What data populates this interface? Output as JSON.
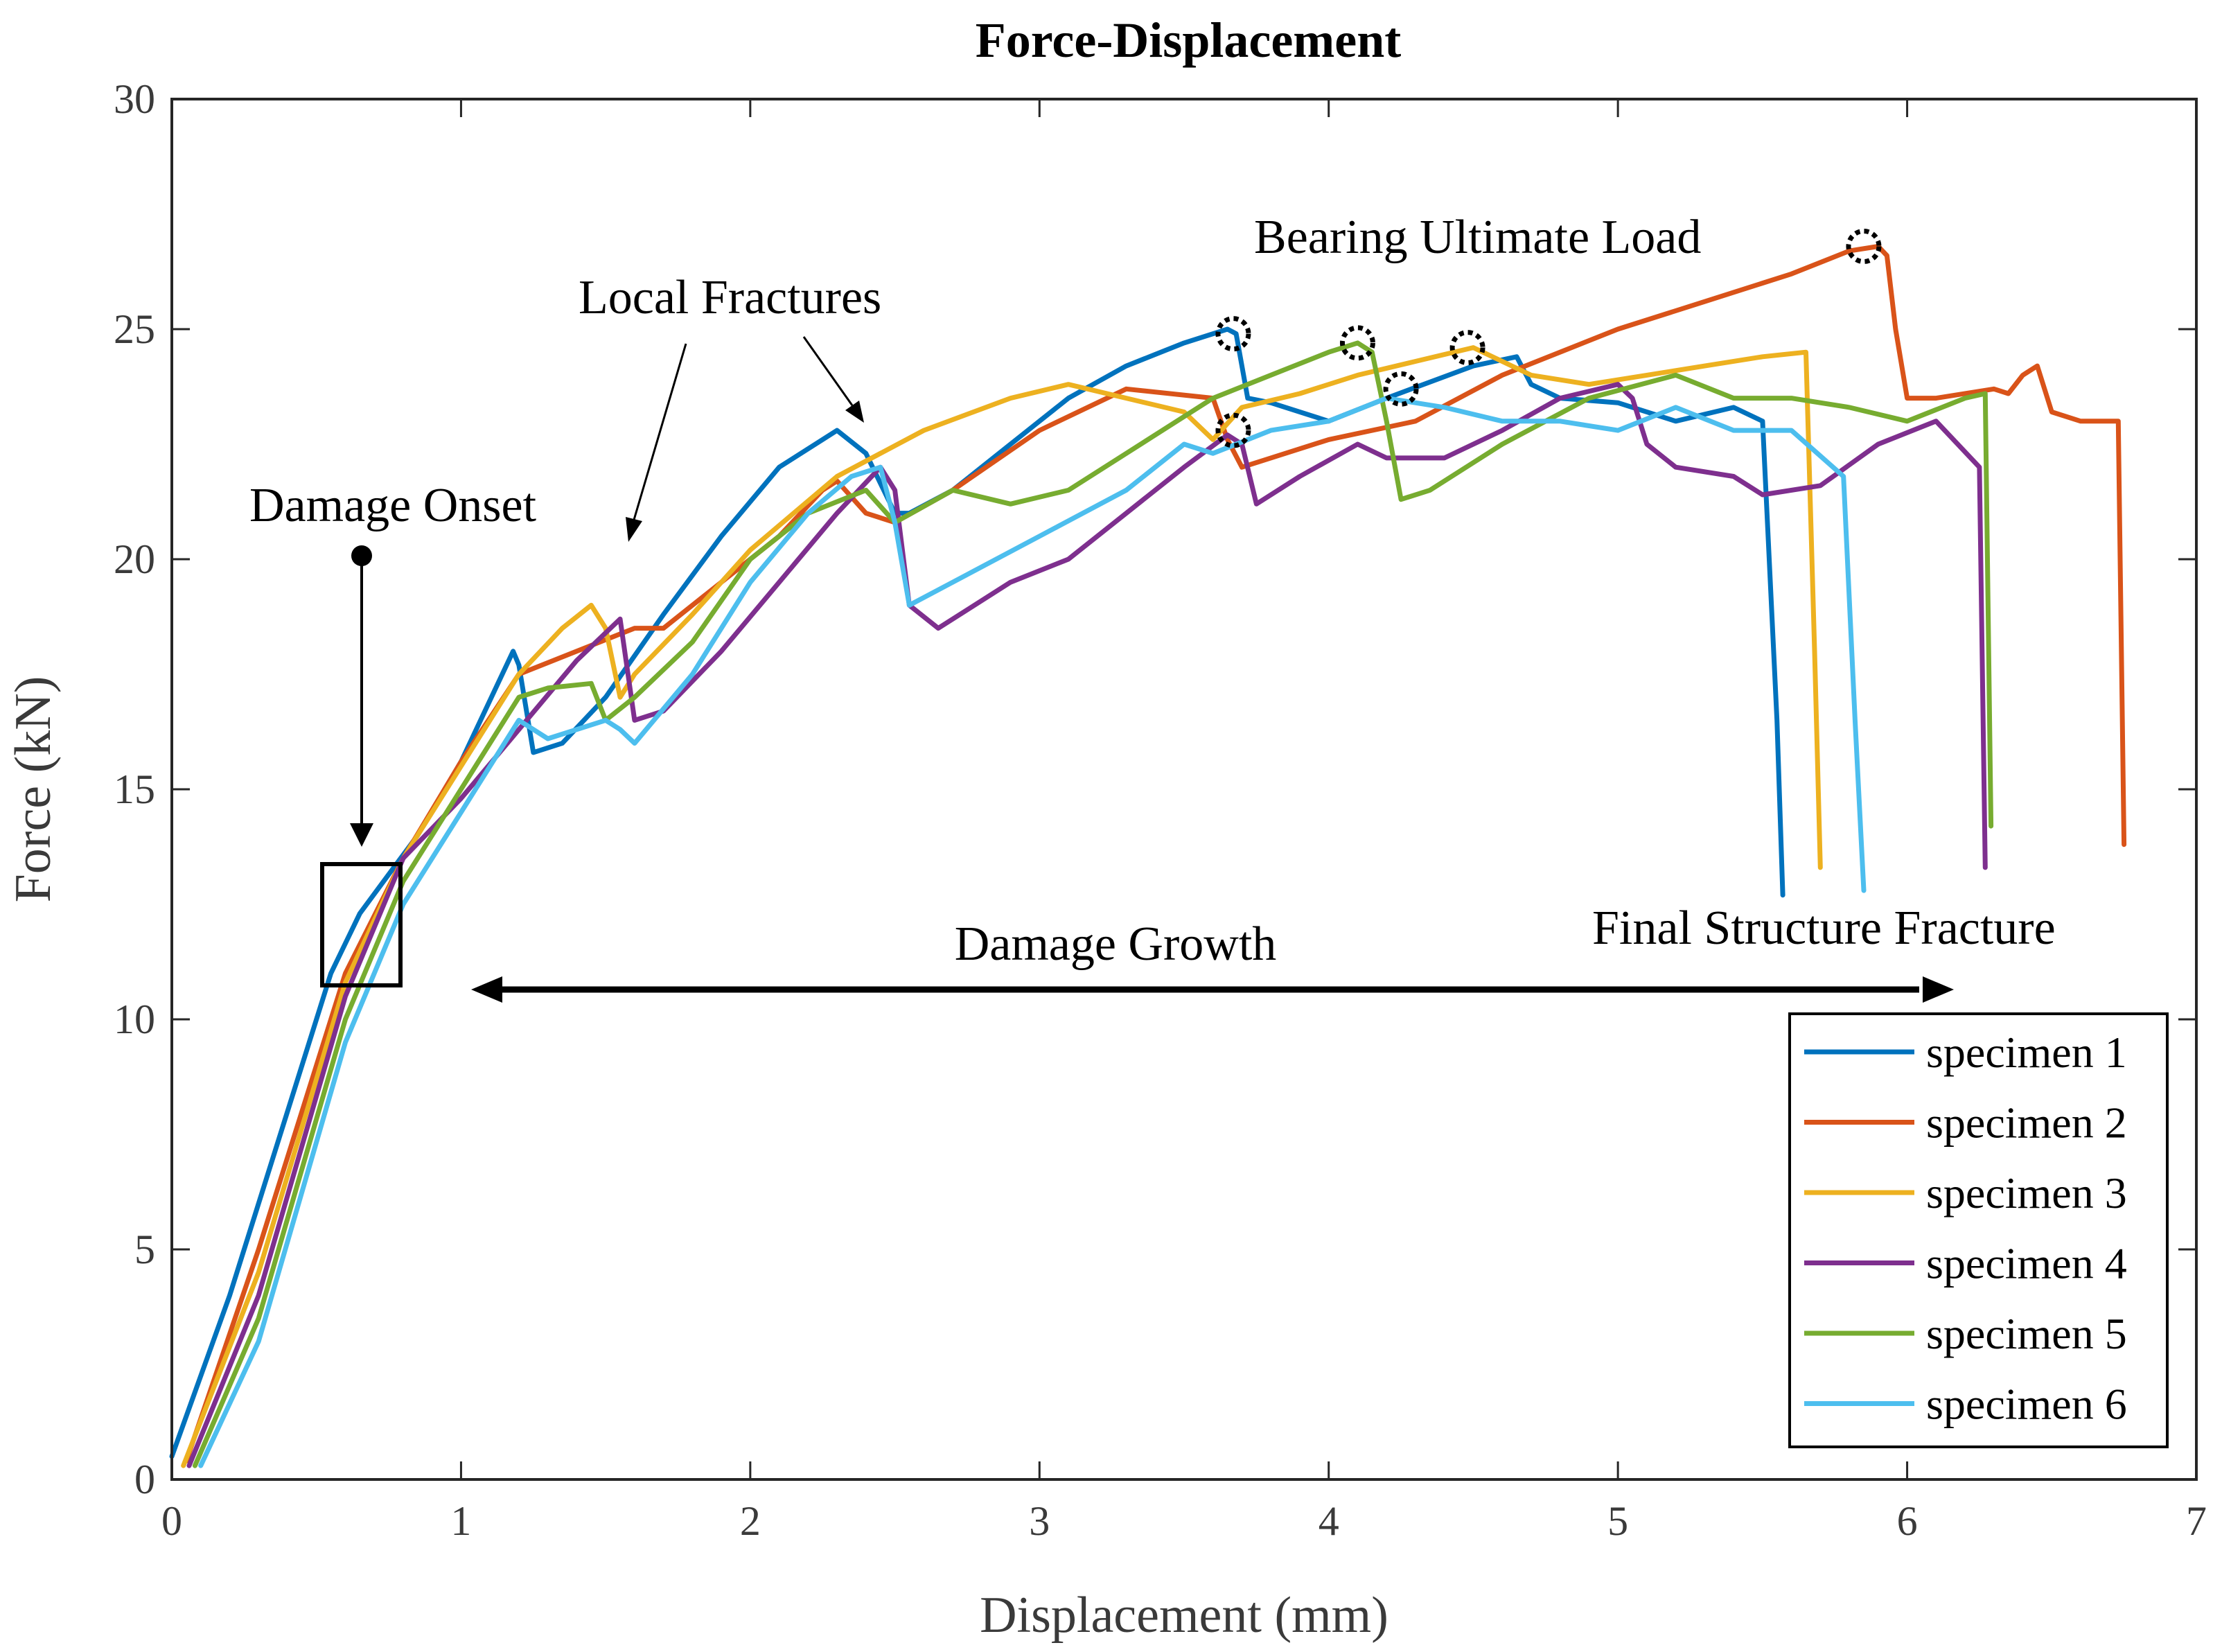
{
  "chart_data": {
    "type": "line",
    "title": "Force-Displacement",
    "xlabel": "Displacement (mm)",
    "ylabel": "Force (kN)",
    "xlim": [
      0,
      7
    ],
    "ylim": [
      0,
      30
    ],
    "xticks": [
      0,
      1,
      2,
      3,
      4,
      5,
      6,
      7
    ],
    "yticks": [
      0,
      5,
      10,
      15,
      20,
      25,
      30
    ],
    "grid": false,
    "legend": "bottom-right",
    "series": [
      {
        "name": "specimen 1",
        "color": "#0072BD",
        "x": [
          0.0,
          0.2,
          0.4,
          0.55,
          0.65,
          0.85,
          1.0,
          1.18,
          1.2,
          1.25,
          1.35,
          1.5,
          1.7,
          1.9,
          2.1,
          2.3,
          2.4,
          2.5,
          2.55,
          2.7,
          2.9,
          3.1,
          3.3,
          3.5,
          3.65,
          3.68,
          3.72,
          3.8,
          4.0,
          4.2,
          4.5,
          4.65,
          4.7,
          4.8,
          5.0,
          5.2,
          5.4,
          5.5,
          5.55,
          5.57
        ],
        "y": [
          0.5,
          4.0,
          8.0,
          11.0,
          12.3,
          14.0,
          15.6,
          18.0,
          17.7,
          15.8,
          16.0,
          17.0,
          18.8,
          20.5,
          22.0,
          22.8,
          22.3,
          21.0,
          21.0,
          21.5,
          22.5,
          23.5,
          24.2,
          24.7,
          25.0,
          24.9,
          23.5,
          23.4,
          23.0,
          23.5,
          24.2,
          24.4,
          23.8,
          23.5,
          23.4,
          23.0,
          23.3,
          23.0,
          16.5,
          12.7
        ]
      },
      {
        "name": "specimen 2",
        "color": "#D95319",
        "x": [
          0.05,
          0.3,
          0.6,
          0.8,
          1.0,
          1.2,
          1.4,
          1.6,
          1.7,
          1.9,
          2.1,
          2.25,
          2.3,
          2.4,
          2.5,
          2.7,
          3.0,
          3.3,
          3.6,
          3.65,
          3.7,
          3.8,
          4.0,
          4.3,
          4.6,
          5.0,
          5.3,
          5.6,
          5.8,
          5.9,
          5.93,
          5.96,
          6.0,
          6.1,
          6.3,
          6.35,
          6.4,
          6.45,
          6.5,
          6.6,
          6.73,
          6.75
        ],
        "y": [
          0.4,
          5.0,
          11.0,
          13.5,
          15.6,
          17.5,
          18.0,
          18.5,
          18.5,
          19.5,
          20.5,
          21.5,
          21.7,
          21.0,
          20.8,
          21.5,
          22.8,
          23.7,
          23.5,
          22.6,
          22.0,
          22.2,
          22.6,
          23.0,
          24.0,
          25.0,
          25.6,
          26.2,
          26.7,
          26.8,
          26.6,
          25.0,
          23.5,
          23.5,
          23.7,
          23.6,
          24.0,
          24.2,
          23.2,
          23.0,
          23.0,
          13.8
        ]
      },
      {
        "name": "specimen 3",
        "color": "#EDB120",
        "x": [
          0.04,
          0.3,
          0.6,
          0.8,
          1.0,
          1.2,
          1.35,
          1.45,
          1.5,
          1.55,
          1.6,
          1.8,
          2.0,
          2.3,
          2.6,
          2.9,
          3.1,
          3.3,
          3.5,
          3.6,
          3.7,
          3.9,
          4.1,
          4.3,
          4.5,
          4.7,
          4.9,
          5.1,
          5.3,
          5.5,
          5.65,
          5.68,
          5.7
        ],
        "y": [
          0.3,
          4.5,
          10.8,
          13.5,
          15.5,
          17.5,
          18.5,
          19.0,
          18.5,
          17.0,
          17.5,
          18.8,
          20.2,
          21.8,
          22.8,
          23.5,
          23.8,
          23.5,
          23.2,
          22.6,
          23.3,
          23.6,
          24.0,
          24.3,
          24.6,
          24.0,
          23.8,
          24.0,
          24.2,
          24.4,
          24.5,
          18.0,
          13.3
        ]
      },
      {
        "name": "specimen 4",
        "color": "#7E2F8E",
        "x": [
          0.06,
          0.3,
          0.6,
          0.8,
          1.0,
          1.2,
          1.4,
          1.55,
          1.6,
          1.7,
          1.9,
          2.1,
          2.3,
          2.45,
          2.5,
          2.55,
          2.65,
          2.9,
          3.1,
          3.3,
          3.5,
          3.65,
          3.7,
          3.75,
          3.9,
          4.1,
          4.2,
          4.4,
          4.6,
          4.8,
          5.0,
          5.05,
          5.1,
          5.2,
          5.4,
          5.5,
          5.7,
          5.9,
          6.1,
          6.25,
          6.27
        ],
        "y": [
          0.3,
          4.0,
          10.5,
          13.5,
          14.8,
          16.3,
          17.8,
          18.7,
          16.5,
          16.7,
          18.0,
          19.5,
          21.0,
          22.0,
          21.5,
          19.0,
          18.5,
          19.5,
          20.0,
          21.0,
          22.0,
          22.7,
          22.5,
          21.2,
          21.8,
          22.5,
          22.2,
          22.2,
          22.8,
          23.5,
          23.8,
          23.5,
          22.5,
          22.0,
          21.8,
          21.4,
          21.6,
          22.5,
          23.0,
          22.0,
          13.3
        ]
      },
      {
        "name": "specimen 5",
        "color": "#77AC30",
        "x": [
          0.08,
          0.3,
          0.6,
          0.8,
          1.0,
          1.2,
          1.3,
          1.45,
          1.5,
          1.6,
          1.8,
          2.0,
          2.2,
          2.4,
          2.5,
          2.7,
          2.9,
          3.1,
          3.3,
          3.6,
          3.8,
          4.0,
          4.1,
          4.15,
          4.2,
          4.25,
          4.35,
          4.6,
          4.9,
          5.2,
          5.4,
          5.6,
          5.8,
          6.0,
          6.2,
          6.27,
          6.29
        ],
        "y": [
          0.3,
          3.5,
          10.0,
          13.0,
          15.0,
          17.0,
          17.2,
          17.3,
          16.5,
          17.0,
          18.2,
          20.0,
          21.0,
          21.5,
          20.8,
          21.5,
          21.2,
          21.5,
          22.3,
          23.5,
          24.0,
          24.5,
          24.7,
          24.5,
          23.0,
          21.3,
          21.5,
          22.5,
          23.5,
          24.0,
          23.5,
          23.5,
          23.3,
          23.0,
          23.5,
          23.6,
          14.2
        ]
      },
      {
        "name": "specimen 6",
        "color": "#4DBEEE",
        "x": [
          0.1,
          0.3,
          0.6,
          0.8,
          1.0,
          1.2,
          1.3,
          1.5,
          1.55,
          1.6,
          1.8,
          2.0,
          2.2,
          2.35,
          2.45,
          2.5,
          2.55,
          2.7,
          3.0,
          3.3,
          3.5,
          3.6,
          3.8,
          4.0,
          4.2,
          4.4,
          4.6,
          4.8,
          5.0,
          5.2,
          5.4,
          5.6,
          5.78,
          5.82,
          5.85
        ],
        "y": [
          0.3,
          3.0,
          9.5,
          12.5,
          14.5,
          16.5,
          16.1,
          16.5,
          16.3,
          16.0,
          17.5,
          19.5,
          21.0,
          21.8,
          22.0,
          20.8,
          19.0,
          19.5,
          20.5,
          21.5,
          22.5,
          22.3,
          22.8,
          23.0,
          23.5,
          23.3,
          23.0,
          23.0,
          22.8,
          23.3,
          22.8,
          22.8,
          21.8,
          16.5,
          12.8
        ]
      }
    ],
    "annotations": {
      "damage_onset": "Damage Onset",
      "local_fractures": "Local Fractures",
      "bearing_ultimate_load": "Bearing Ultimate Load",
      "damage_growth": "Damage Growth",
      "final_structure_fracture": "Final Structure Fracture"
    },
    "marked_points": [
      {
        "series": "specimen 1",
        "x": 3.67,
        "y": 24.9
      },
      {
        "series": "specimen 2",
        "x": 5.85,
        "y": 26.8
      },
      {
        "series": "specimen 3",
        "x": 4.48,
        "y": 24.6
      },
      {
        "series": "specimen 4",
        "x": 3.67,
        "y": 22.8
      },
      {
        "series": "specimen 5",
        "x": 4.1,
        "y": 24.7
      },
      {
        "series": "specimen 6",
        "x": 4.25,
        "y": 23.7
      }
    ]
  }
}
